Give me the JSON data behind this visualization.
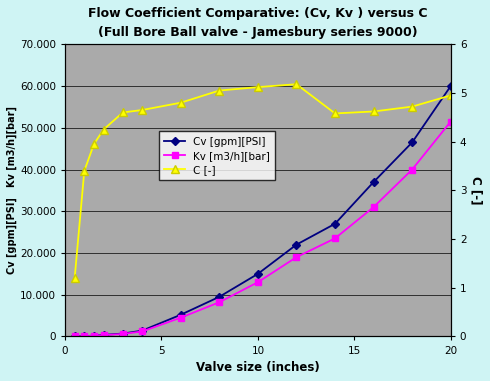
{
  "title": "Flow Coefficient Comparative: (Cv, Kv ) versus C",
  "subtitle": "(Full Bore Ball valve - Jamesbury series 9000)",
  "xlabel": "Valve size (inches)",
  "ylabel_left": "Cv [gpm][PSI]   Kv [m3/h][bar]",
  "ylabel_right": "C [-]",
  "background_color": "#cff4f4",
  "plot_bg_color": "#aaaaaa",
  "xlim": [
    0,
    20
  ],
  "ylim_left": [
    0,
    70000
  ],
  "ylim_right": [
    0,
    6
  ],
  "xticks": [
    0,
    5,
    10,
    15,
    20
  ],
  "yticks_left": [
    0,
    10000,
    20000,
    30000,
    40000,
    50000,
    60000,
    70000
  ],
  "yticks_right": [
    0,
    1,
    2,
    3,
    4,
    5,
    6
  ],
  "cv_x": [
    0.5,
    1,
    1.5,
    2,
    3,
    4,
    6,
    8,
    10,
    12,
    14,
    16,
    18,
    20
  ],
  "cv_y": [
    0,
    75,
    200,
    380,
    700,
    1400,
    5200,
    9500,
    15000,
    22000,
    27000,
    37000,
    46500,
    60000
  ],
  "kv_x": [
    0.5,
    1,
    1.5,
    2,
    3,
    4,
    6,
    8,
    10,
    12,
    14,
    16,
    18,
    20
  ],
  "kv_y": [
    0,
    65,
    175,
    320,
    600,
    1200,
    4500,
    8200,
    13000,
    19000,
    23500,
    31000,
    40000,
    51500
  ],
  "c_x": [
    0.5,
    1,
    1.5,
    2,
    3,
    4,
    6,
    8,
    10,
    12,
    14,
    16,
    18,
    20
  ],
  "c_y": [
    1.2,
    3.4,
    3.95,
    4.25,
    4.6,
    4.65,
    4.8,
    5.05,
    5.12,
    5.18,
    4.58,
    4.62,
    4.72,
    4.95
  ],
  "cv_color": "#000080",
  "kv_color": "#ff00ff",
  "c_color": "#ffff00",
  "legend_labels": [
    "Cv [gpm][PSI]",
    "Kv [m3/h][bar]",
    "C [-]"
  ]
}
